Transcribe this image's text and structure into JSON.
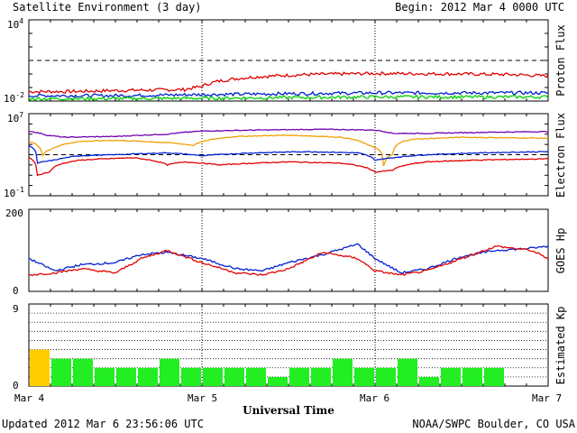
{
  "header": {
    "title": "Satellite Environment (3 day)",
    "begin": "Begin:  2012 Mar 4 0000 UTC"
  },
  "footer": {
    "updated": "Updated 2012 Mar  6 23:56:06 UTC",
    "credit": "NOAA/SWPC Boulder, CO USA",
    "xlabel": "Universal Time"
  },
  "x_ticks": [
    "Mar 4",
    "Mar 5",
    "Mar 6",
    "Mar 7"
  ],
  "colors": {
    "red": "#e00000",
    "blue": "#0020d0",
    "green": "#00d000",
    "orange": "#f0a000",
    "purple": "#7000b0",
    "kp_green": "#22ee22",
    "kp_yellow": "#ffcc00"
  },
  "chart_data": [
    {
      "type": "line",
      "ylabel": "Proton Flux",
      "yscale": "log",
      "ylim": [
        0.01,
        10000
      ],
      "ytick_labels": [
        {
          "base": "10",
          "exp": "4",
          "value": 10000
        },
        {
          "base": "10",
          "exp": "-2",
          "value": 0.01
        }
      ],
      "threshold": 10,
      "x_range_days": [
        0,
        3
      ],
      "series": [
        {
          "color": "red",
          "x": [
            0,
            0.25,
            0.5,
            0.9,
            1.0,
            1.1,
            1.3,
            1.6,
            2.0,
            2.5,
            2.8,
            3.0
          ],
          "y": [
            0.05,
            0.05,
            0.06,
            0.07,
            0.12,
            0.3,
            0.6,
            0.9,
            1.1,
            1.0,
            0.9,
            0.7
          ]
        },
        {
          "color": "blue",
          "x": [
            0,
            0.5,
            1.0,
            1.5,
            2.0,
            2.5,
            3.0
          ],
          "y": [
            0.025,
            0.025,
            0.03,
            0.035,
            0.04,
            0.04,
            0.04
          ]
        },
        {
          "color": "green",
          "x": [
            0,
            0.5,
            1.0,
            1.5,
            2.0,
            2.5,
            3.0
          ],
          "y": [
            0.015,
            0.015,
            0.016,
            0.018,
            0.02,
            0.02,
            0.02
          ]
        }
      ]
    },
    {
      "type": "line",
      "ylabel": "Electron Flux",
      "yscale": "log",
      "ylim": [
        0.1,
        10000000
      ],
      "ytick_labels": [
        {
          "base": "10",
          "exp": "7",
          "value": 10000000
        },
        {
          "base": "10",
          "exp": "-1",
          "value": 0.1
        }
      ],
      "threshold": 1000,
      "x_range_days": [
        0,
        3
      ],
      "series": [
        {
          "color": "purple",
          "x": [
            0,
            0.1,
            0.2,
            0.5,
            0.8,
            1.0,
            1.3,
            1.7,
            2.0,
            2.1,
            2.3,
            2.6,
            3.0
          ],
          "y": [
            200000,
            80000,
            50000,
            60000,
            100000,
            200000,
            250000,
            300000,
            250000,
            120000,
            120000,
            150000,
            180000
          ]
        },
        {
          "color": "orange",
          "x": [
            0,
            0.08,
            0.15,
            0.3,
            0.5,
            0.8,
            0.95,
            1.2,
            1.5,
            1.8,
            1.95,
            2.05,
            2.1,
            2.2,
            2.5,
            3.0
          ],
          "y": [
            20000,
            800,
            5000,
            20000,
            25000,
            15000,
            8000,
            60000,
            80000,
            50000,
            10000,
            80,
            1000,
            30000,
            50000,
            40000
          ]
        },
        {
          "color": "blue",
          "x": [
            0,
            0.05,
            0.15,
            0.3,
            0.5,
            0.8,
            1.0,
            1.3,
            1.6,
            1.9,
            2.0,
            2.1,
            2.3,
            2.6,
            3.0
          ],
          "y": [
            8000,
            150,
            300,
            800,
            1000,
            1500,
            800,
            1500,
            2000,
            1500,
            300,
            500,
            1000,
            1500,
            2000
          ]
        },
        {
          "color": "red",
          "x": [
            0,
            0.05,
            0.12,
            0.3,
            0.6,
            0.8,
            0.9,
            1.1,
            1.5,
            1.8,
            2.0,
            2.1,
            2.3,
            2.6,
            3.0
          ],
          "y": [
            500,
            10,
            20,
            300,
            500,
            100,
            200,
            100,
            200,
            150,
            20,
            30,
            200,
            300,
            400
          ]
        }
      ]
    },
    {
      "type": "line",
      "ylabel": "GOES Hp",
      "ylim": [
        0,
        200
      ],
      "yticks": [
        200,
        0
      ],
      "x_range_days": [
        0,
        3
      ],
      "series": [
        {
          "color": "blue",
          "x": [
            0,
            0.15,
            0.3,
            0.5,
            0.65,
            0.8,
            1.0,
            1.2,
            1.35,
            1.5,
            1.7,
            1.9,
            2.0,
            2.15,
            2.3,
            2.5,
            2.7,
            2.9,
            3.0
          ],
          "y": [
            80,
            50,
            65,
            70,
            90,
            95,
            80,
            55,
            50,
            70,
            90,
            115,
            80,
            45,
            55,
            85,
            100,
            105,
            110
          ]
        },
        {
          "color": "red",
          "x": [
            0,
            0.15,
            0.3,
            0.5,
            0.65,
            0.8,
            1.0,
            1.2,
            1.35,
            1.5,
            1.7,
            1.9,
            2.0,
            2.15,
            2.3,
            2.5,
            2.7,
            2.9,
            3.0
          ],
          "y": [
            40,
            45,
            55,
            45,
            80,
            100,
            70,
            45,
            40,
            55,
            95,
            80,
            50,
            40,
            50,
            80,
            110,
            100,
            80
          ]
        }
      ]
    },
    {
      "type": "bar",
      "ylabel": "Estimated Kp",
      "ylim": [
        0,
        9
      ],
      "yticks": [
        9,
        0
      ],
      "bar_width_hours": 3,
      "values": [
        4,
        3,
        3,
        2,
        2,
        2,
        3,
        2,
        2,
        2,
        2,
        1,
        2,
        2,
        3,
        2,
        2,
        3,
        1,
        2,
        2,
        2
      ],
      "bar_colors": [
        "kp_yellow",
        "kp_green",
        "kp_green",
        "kp_green",
        "kp_green",
        "kp_green",
        "kp_green",
        "kp_green",
        "kp_green",
        "kp_green",
        "kp_green",
        "kp_green",
        "kp_green",
        "kp_green",
        "kp_green",
        "kp_green",
        "kp_green",
        "kp_green",
        "kp_green",
        "kp_green",
        "kp_green",
        "kp_green"
      ]
    }
  ]
}
